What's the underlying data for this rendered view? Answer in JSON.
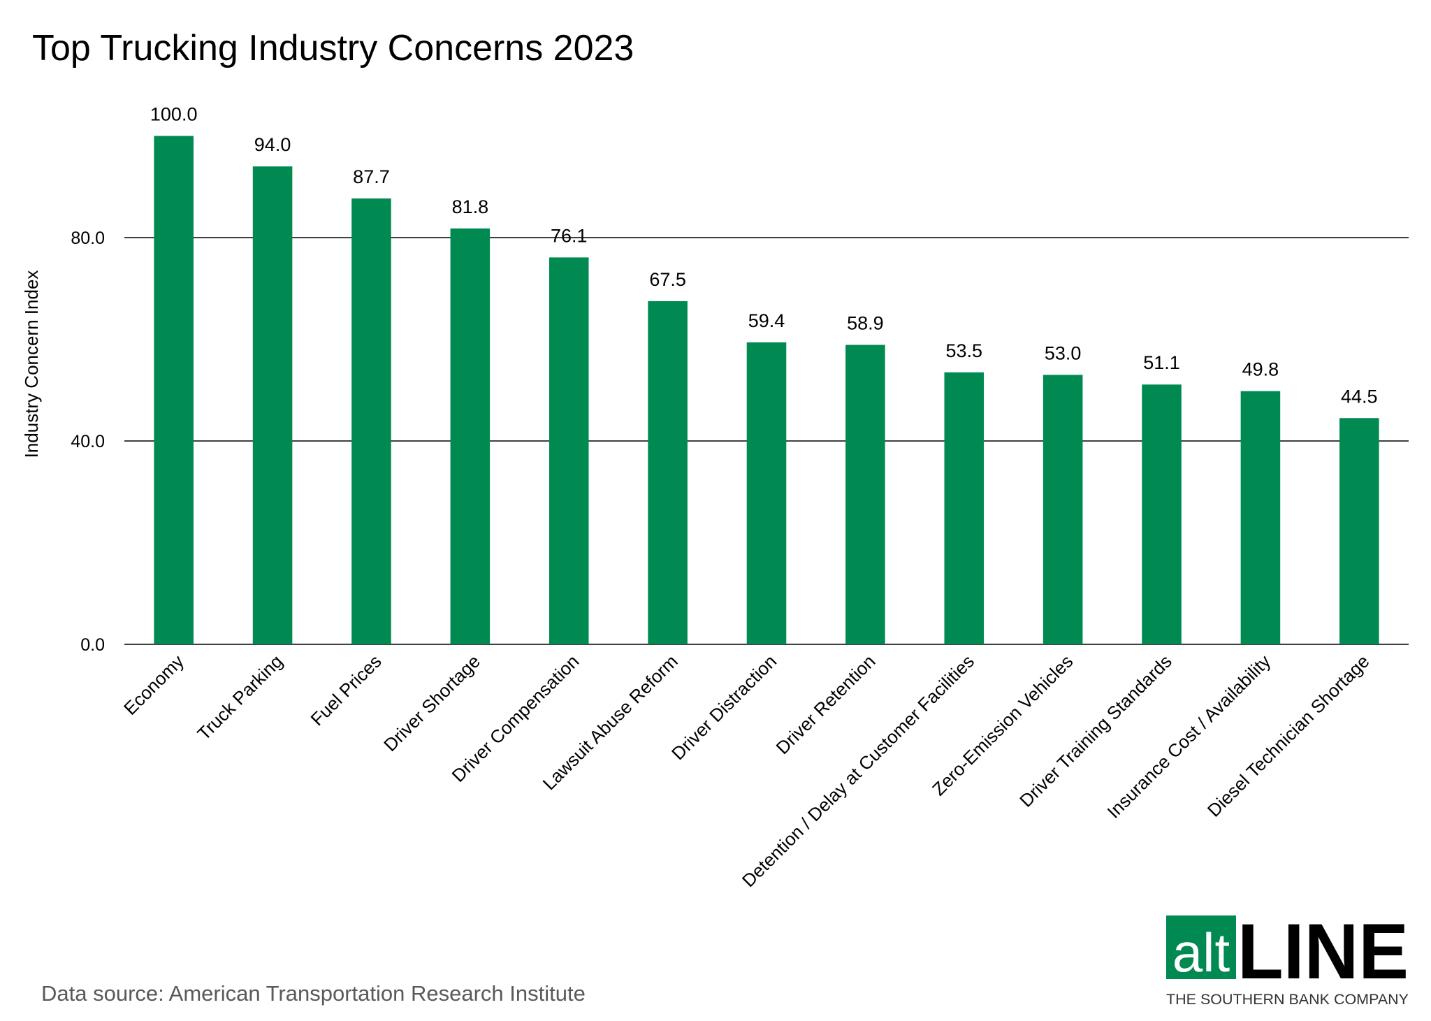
{
  "chart_data": {
    "type": "bar",
    "title": "Top Trucking Industry Concerns 2023",
    "y_label": "Industry Concern Index",
    "categories": [
      "Economy",
      "Truck Parking",
      "Fuel Prices",
      "Driver Shortage",
      "Driver Compensation",
      "Lawsuit Abuse Reform",
      "Driver Distraction",
      "Driver Retention",
      "Detention / Delay at Customer Facilities",
      "Zero-Emission Vehicles",
      "Driver Training Standards",
      "Insurance Cost / Availability",
      "Diesel Technician Shortage"
    ],
    "values": [
      100,
      94,
      87.7,
      81.8,
      76.1,
      67.5,
      59.4,
      58.9,
      53.5,
      53,
      51.1,
      49.8,
      44.5
    ],
    "value_labels": [
      "100.0",
      "94.0",
      "87.7",
      "81.8",
      "76.1",
      "67.5",
      "59.4",
      "58.9",
      "53.5",
      "53.0",
      "51.1",
      "49.8",
      "44.5"
    ],
    "color": "#008a52",
    "ylim": [
      0,
      100
    ],
    "yticks": [
      {
        "value": 0,
        "label": "0.0"
      },
      {
        "value": 40,
        "label": "40.0"
      },
      {
        "value": 80,
        "label": "80.0"
      }
    ],
    "grid": true,
    "source": "Data source: American Transportation Research Institute"
  },
  "logo": {
    "prefix": "alt",
    "name": "LINE",
    "tagline": "THE SOUTHERN BANK COMPANY"
  }
}
